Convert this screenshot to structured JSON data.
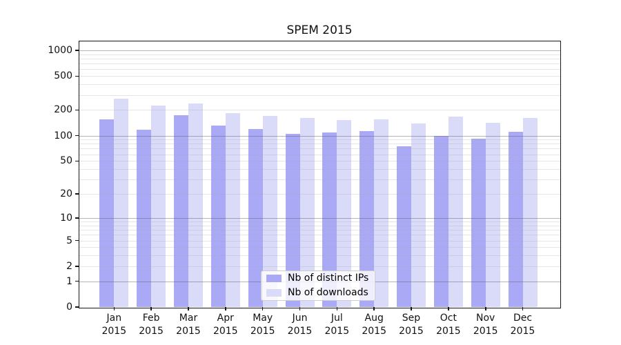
{
  "chart_data": {
    "type": "bar",
    "title": "SPEM 2015",
    "categories": [
      "Jan",
      "Feb",
      "Mar",
      "Apr",
      "May",
      "Jun",
      "Jul",
      "Aug",
      "Sep",
      "Oct",
      "Nov",
      "Dec"
    ],
    "x_year_label": "2015",
    "series": [
      {
        "name": "Nb of distinct IPs",
        "color": "#a9a9f6",
        "values": [
          155,
          117,
          175,
          131,
          120,
          104,
          108,
          112,
          75,
          100,
          92,
          110
        ]
      },
      {
        "name": "Nb of downloads",
        "color": "#dadaf9",
        "values": [
          270,
          226,
          238,
          184,
          170,
          161,
          152,
          155,
          138,
          166,
          142,
          160
        ]
      }
    ],
    "yscale": "log10(value+1)",
    "yticks": [
      1000,
      500,
      200,
      100,
      50,
      20,
      10,
      5,
      2,
      1,
      0
    ],
    "ylim": [
      0,
      1270
    ],
    "grid": true,
    "legend_position": "lower center"
  }
}
